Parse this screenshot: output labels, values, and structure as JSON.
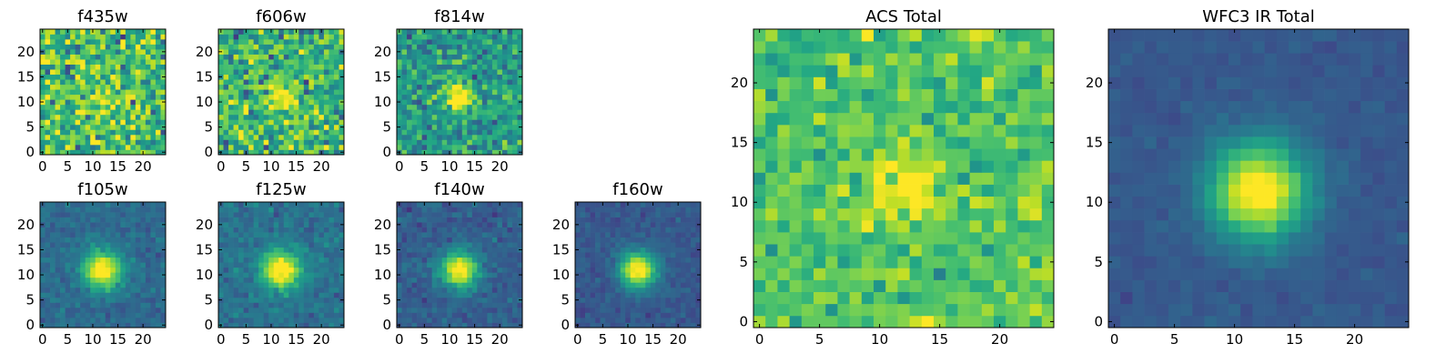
{
  "chart_data": [
    {
      "type": "heatmap",
      "title": "f435w",
      "colormap": "viridis",
      "grid": false,
      "pixels": 25,
      "xticks": [
        "0",
        "5",
        "10",
        "15",
        "20"
      ],
      "yticks": [
        "0",
        "5",
        "10",
        "15",
        "20"
      ],
      "source_peak": 0.2,
      "source_width": 2.5,
      "noise": 1.0,
      "background": 0.7,
      "seed": 11
    },
    {
      "type": "heatmap",
      "title": "f606w",
      "colormap": "viridis",
      "grid": false,
      "pixels": 25,
      "xticks": [
        "0",
        "5",
        "10",
        "15",
        "20"
      ],
      "yticks": [
        "0",
        "5",
        "10",
        "15",
        "20"
      ],
      "source_peak": 0.35,
      "source_width": 2.2,
      "noise": 0.9,
      "background": 0.65,
      "seed": 23
    },
    {
      "type": "heatmap",
      "title": "f814w",
      "colormap": "viridis",
      "grid": false,
      "pixels": 25,
      "xticks": [
        "0",
        "5",
        "10",
        "15",
        "20"
      ],
      "yticks": [
        "0",
        "5",
        "10",
        "15",
        "20"
      ],
      "source_peak": 0.5,
      "source_width": 2.0,
      "noise": 0.7,
      "background": 0.55,
      "seed": 37
    },
    {
      "type": "heatmap",
      "title": "f105w",
      "colormap": "viridis",
      "grid": false,
      "pixels": 25,
      "xticks": [
        "0",
        "5",
        "10",
        "15",
        "20"
      ],
      "yticks": [
        "0",
        "5",
        "10",
        "15",
        "20"
      ],
      "source_peak": 0.75,
      "source_width": 2.6,
      "noise": 0.25,
      "background": 0.35,
      "seed": 41
    },
    {
      "type": "heatmap",
      "title": "f125w",
      "colormap": "viridis",
      "grid": false,
      "pixels": 25,
      "xticks": [
        "0",
        "5",
        "10",
        "15",
        "20"
      ],
      "yticks": [
        "0",
        "5",
        "10",
        "15",
        "20"
      ],
      "source_peak": 0.75,
      "source_width": 2.6,
      "noise": 0.3,
      "background": 0.38,
      "seed": 53
    },
    {
      "type": "heatmap",
      "title": "f140w",
      "colormap": "viridis",
      "grid": false,
      "pixels": 25,
      "xticks": [
        "0",
        "5",
        "10",
        "15",
        "20"
      ],
      "yticks": [
        "0",
        "5",
        "10",
        "15",
        "20"
      ],
      "source_peak": 0.75,
      "source_width": 2.5,
      "noise": 0.25,
      "background": 0.3,
      "seed": 67
    },
    {
      "type": "heatmap",
      "title": "f160w",
      "colormap": "viridis",
      "grid": false,
      "pixels": 25,
      "xticks": [
        "0",
        "5",
        "10",
        "15",
        "20"
      ],
      "yticks": [
        "0",
        "5",
        "10",
        "15",
        "20"
      ],
      "source_peak": 0.8,
      "source_width": 2.5,
      "noise": 0.2,
      "background": 0.28,
      "seed": 79
    },
    {
      "type": "heatmap",
      "title": "ACS Total",
      "colormap": "viridis",
      "grid": false,
      "pixels": 25,
      "xticks": [
        "0",
        "5",
        "10",
        "15",
        "20"
      ],
      "yticks": [
        "0",
        "5",
        "10",
        "15",
        "20"
      ],
      "source_peak": 0.3,
      "source_width": 2.2,
      "noise": 0.55,
      "background": 0.72,
      "seed": 97
    },
    {
      "type": "heatmap",
      "title": "WFC3 IR Total",
      "colormap": "viridis",
      "grid": false,
      "pixels": 25,
      "xticks": [
        "0",
        "5",
        "10",
        "15",
        "20"
      ],
      "yticks": [
        "0",
        "5",
        "10",
        "15",
        "20"
      ],
      "source_peak": 0.8,
      "source_width": 2.8,
      "noise": 0.12,
      "background": 0.28,
      "seed": 113
    }
  ]
}
